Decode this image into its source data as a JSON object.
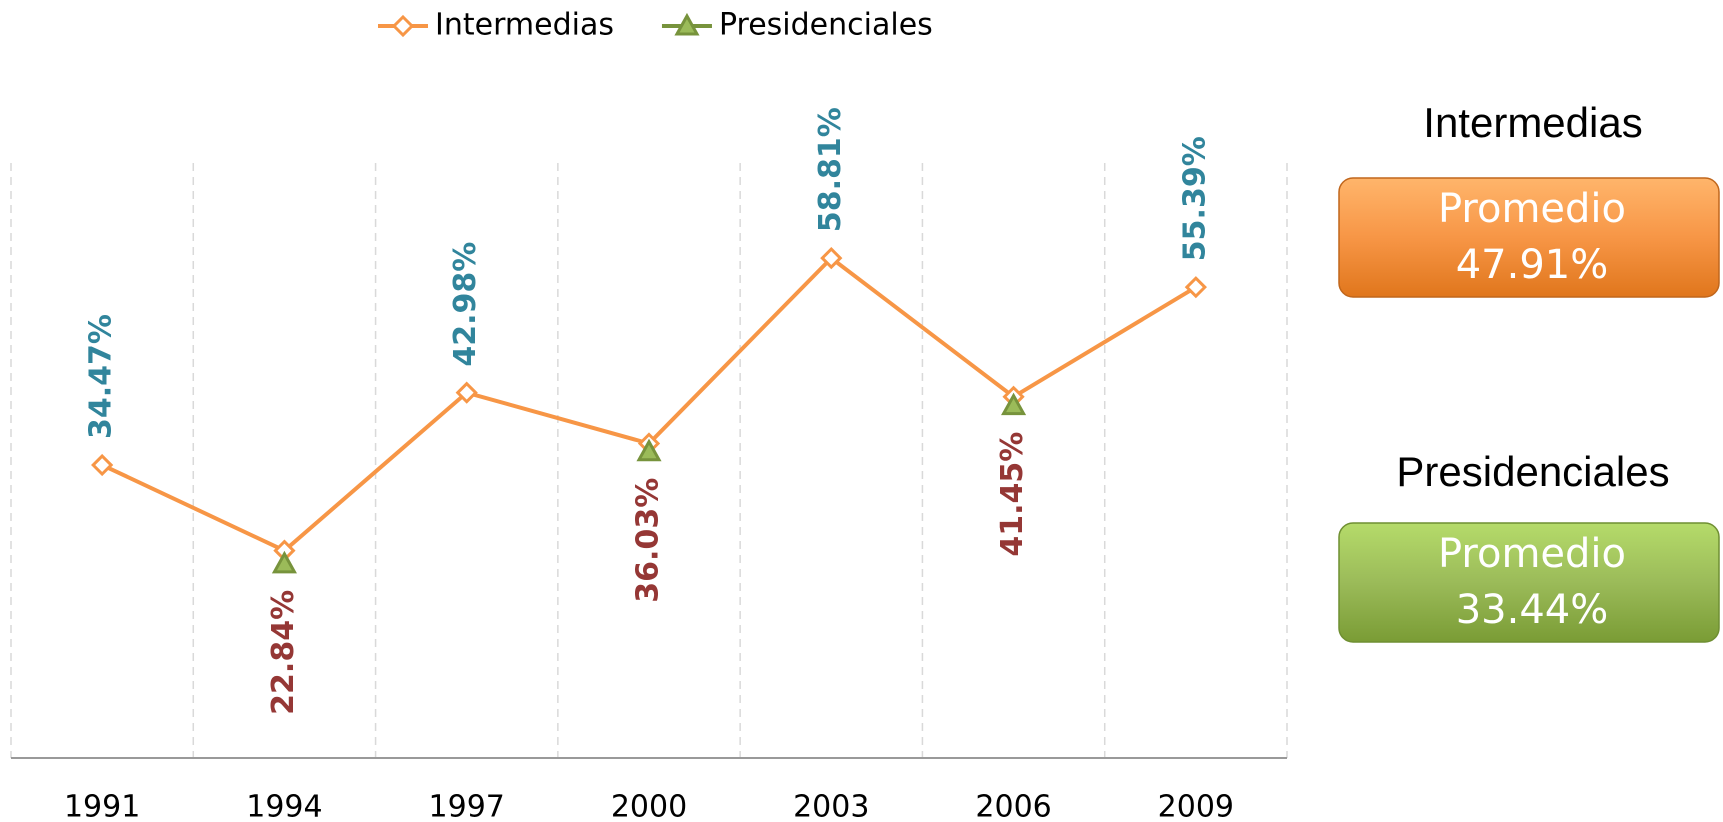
{
  "chart_data": {
    "type": "line",
    "categories": [
      "1991",
      "1994",
      "1997",
      "2000",
      "2003",
      "2006",
      "2009"
    ],
    "series": [
      {
        "name": "Intermedias",
        "color": "#f79646",
        "marker": "diamond",
        "label_color": "#31859c",
        "label_side": "above",
        "values": [
          34.47,
          24.4,
          42.98,
          37.0,
          58.81,
          42.5,
          55.39
        ],
        "value_labels": [
          "34.47%",
          null,
          "42.98%",
          null,
          "58.81%",
          null,
          "55.39%"
        ]
      },
      {
        "name": "Presidenciales",
        "color": "#77933c",
        "marker": "triangle",
        "label_color": "#953735",
        "label_side": "below",
        "values": [
          null,
          22.84,
          null,
          36.03,
          null,
          41.45,
          null
        ],
        "value_labels": [
          null,
          "22.84%",
          null,
          "36.03%",
          null,
          "41.45%",
          null
        ]
      }
    ],
    "ylim": [
      0,
      70
    ],
    "legend": "top",
    "summary": [
      {
        "title": "Intermedias",
        "label": "Promedio",
        "value": "47.91%",
        "color": "orange"
      },
      {
        "title": "Presidenciales",
        "label": "Promedio",
        "value": "33.44%",
        "color": "green"
      }
    ]
  }
}
